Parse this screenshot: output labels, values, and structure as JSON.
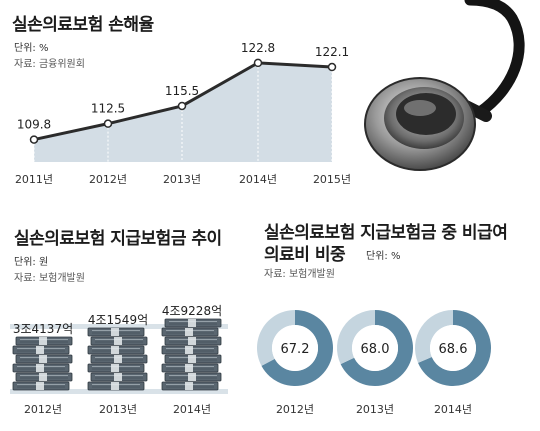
{
  "charts": {
    "loss_ratio": {
      "title": "실손의료보험 손해율",
      "unit": "단위: %",
      "source": "자료: 금융위원회"
    },
    "payout": {
      "title": "실손의료보험 지급보험금 추이",
      "unit": "단위: 원",
      "source": "자료: 보험개발원"
    },
    "noncovered": {
      "title_line1": "실손의료보험 지급보험금 중 비급여",
      "title_line2": "의료비 비중",
      "unit": "단위: %",
      "source": "자료: 보험개발원"
    }
  },
  "chart_data": [
    {
      "type": "area",
      "title": "실손의료보험 손해율",
      "categories": [
        "2011년",
        "2012년",
        "2013년",
        "2014년",
        "2015년"
      ],
      "values": [
        109.8,
        112.5,
        115.5,
        122.8,
        122.1
      ],
      "value_labels": [
        "109.8",
        "112.5",
        "115.5",
        "122.8",
        "122.1"
      ],
      "ylabel": "%",
      "ylim": [
        106,
        126
      ],
      "colors": {
        "area": "#d3dde5",
        "line": "#2b2b2b",
        "marker_fill": "#ffffff"
      }
    },
    {
      "type": "bar",
      "title": "실손의료보험 지급보험금 추이",
      "categories": [
        "2012년",
        "2013년",
        "2014년"
      ],
      "values": [
        3.4137,
        4.1549,
        4.9228
      ],
      "value_labels": [
        "3조4137억",
        "4조1549억",
        "4조9228억"
      ],
      "ylabel": "원",
      "icon": "money-stack-icon",
      "colors": {
        "stack": "#5a6670",
        "band": "#d9e2e8"
      }
    },
    {
      "type": "pie",
      "title": "실손의료보험 지급보험금 중 비급여 의료비 비중",
      "categories": [
        "2012년",
        "2013년",
        "2014년"
      ],
      "values": [
        67.2,
        68.0,
        68.6
      ],
      "value_labels": [
        "67.2",
        "68.0",
        "68.6"
      ],
      "ylabel": "%",
      "colors": {
        "share": "#5a86a1",
        "rest": "#c5d5df"
      }
    }
  ],
  "decoration": {
    "image": "stethoscope-icon"
  }
}
